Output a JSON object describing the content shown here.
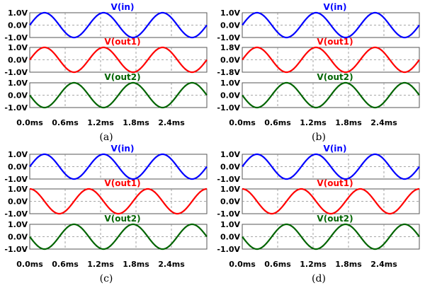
{
  "chart_data": [
    {
      "type": "line",
      "caption": "(a)",
      "x_ticks": [
        "0.0ms",
        "0.6ms",
        "1.2ms",
        "1.8ms",
        "2.4ms"
      ],
      "xlim_ms": [
        0,
        3.0
      ],
      "panels": [
        {
          "title": "V(in)",
          "color": "#0000ff",
          "yticks": [
            "1.0V",
            "0.0V",
            "-1.0V"
          ],
          "ylim": [
            -1.0,
            1.0
          ],
          "amplitude": 1.0,
          "frequency_khz": 1.0,
          "phase_deg": 0
        },
        {
          "title": "V(out1)",
          "color": "#ff0000",
          "yticks": [
            "1.0V",
            "0.0V",
            "-1.0V"
          ],
          "ylim": [
            -1.0,
            1.0
          ],
          "amplitude": 1.0,
          "frequency_khz": 1.0,
          "phase_deg": 0
        },
        {
          "title": "V(out2)",
          "color": "#006400",
          "yticks": [
            "1.0V",
            "0.0V",
            "-1.0V"
          ],
          "ylim": [
            -1.0,
            1.0
          ],
          "amplitude": 1.0,
          "frequency_khz": 1.0,
          "phase_deg": 180
        }
      ]
    },
    {
      "type": "line",
      "caption": "(b)",
      "x_ticks": [
        "0.0ms",
        "0.6ms",
        "1.2ms",
        "1.8ms",
        "2.4ms"
      ],
      "xlim_ms": [
        0,
        3.0
      ],
      "panels": [
        {
          "title": "V(in)",
          "color": "#0000ff",
          "yticks": [
            "1.0V",
            "0.0V",
            "-1.0V"
          ],
          "ylim": [
            -1.0,
            1.0
          ],
          "amplitude": 1.0,
          "frequency_khz": 1.0,
          "phase_deg": 0
        },
        {
          "title": "V(out1)",
          "color": "#ff0000",
          "yticks": [
            "1.8V",
            "0.0V",
            "-1.8V"
          ],
          "ylim": [
            -1.8,
            1.8
          ],
          "amplitude": 1.8,
          "frequency_khz": 1.0,
          "phase_deg": 0
        },
        {
          "title": "V(out2)",
          "color": "#006400",
          "yticks": [
            "1.0V",
            "0.0V",
            "-1.0V"
          ],
          "ylim": [
            -1.0,
            1.0
          ],
          "amplitude": 1.0,
          "frequency_khz": 1.0,
          "phase_deg": 180
        }
      ]
    },
    {
      "type": "line",
      "caption": "(c)",
      "x_ticks": [
        "0.0ms",
        "0.6ms",
        "1.2ms",
        "1.8ms",
        "2.4ms"
      ],
      "xlim_ms": [
        0,
        3.0
      ],
      "panels": [
        {
          "title": "V(in)",
          "color": "#0000ff",
          "yticks": [
            "1.0V",
            "0.0V",
            "-1.0V"
          ],
          "ylim": [
            -1.0,
            1.0
          ],
          "amplitude": 1.0,
          "frequency_khz": 1.0,
          "phase_deg": 0
        },
        {
          "title": "V(out1)",
          "color": "#ff0000",
          "yticks": [
            "1.0V",
            "0.0V",
            "-1.0V"
          ],
          "ylim": [
            -1.0,
            1.0
          ],
          "amplitude": 1.0,
          "frequency_khz": 1.0,
          "phase_deg": 90
        },
        {
          "title": "V(out2)",
          "color": "#006400",
          "yticks": [
            "1.0V",
            "0.0V",
            "-1.0V"
          ],
          "ylim": [
            -1.0,
            1.0
          ],
          "amplitude": 1.0,
          "frequency_khz": 1.0,
          "phase_deg": 180
        }
      ]
    },
    {
      "type": "line",
      "caption": "(d)",
      "x_ticks": [
        "0.0ms",
        "0.6ms",
        "1.2ms",
        "1.8ms",
        "2.4ms"
      ],
      "xlim_ms": [
        0,
        3.0
      ],
      "panels": [
        {
          "title": "V(in)",
          "color": "#0000ff",
          "yticks": [
            "1.0V",
            "0.0V",
            "-1.0V"
          ],
          "ylim": [
            -1.0,
            1.0
          ],
          "amplitude": 1.0,
          "frequency_khz": 1.0,
          "phase_deg": 0
        },
        {
          "title": "V(out1)",
          "color": "#ff0000",
          "yticks": [
            "1.0V",
            "0.0V",
            "-1.0V"
          ],
          "ylim": [
            -1.0,
            1.0
          ],
          "amplitude": 1.0,
          "frequency_khz": 1.0,
          "phase_deg": 90
        },
        {
          "title": "V(out2)",
          "color": "#006400",
          "yticks": [
            "1.0V",
            "0.0V",
            "-1.0V"
          ],
          "ylim": [
            -1.0,
            1.0
          ],
          "amplitude": 1.0,
          "frequency_khz": 1.0,
          "phase_deg": 180
        }
      ]
    }
  ]
}
